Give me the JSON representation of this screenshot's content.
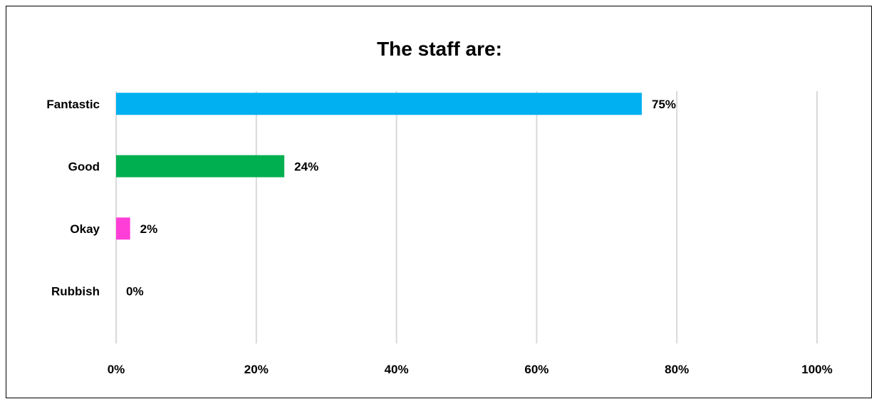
{
  "chart_data": {
    "type": "bar",
    "orientation": "horizontal",
    "title": "The staff are:",
    "categories": [
      "Fantastic",
      "Good",
      "Okay",
      "Rubbish"
    ],
    "values": [
      75,
      24,
      2,
      0
    ],
    "data_labels": [
      "75%",
      "24%",
      "2%",
      "0%"
    ],
    "colors": [
      "#00b0f0",
      "#00b050",
      "#ff3ed8",
      "#7f7f7f"
    ],
    "xlim": [
      0,
      100
    ],
    "x_ticks": [
      0,
      20,
      40,
      60,
      80,
      100
    ],
    "x_tick_labels": [
      "0%",
      "20%",
      "40%",
      "60%",
      "80%",
      "100%"
    ],
    "gridlines": "vertical",
    "gridline_color": "#d9d9d9",
    "legend": "none"
  }
}
